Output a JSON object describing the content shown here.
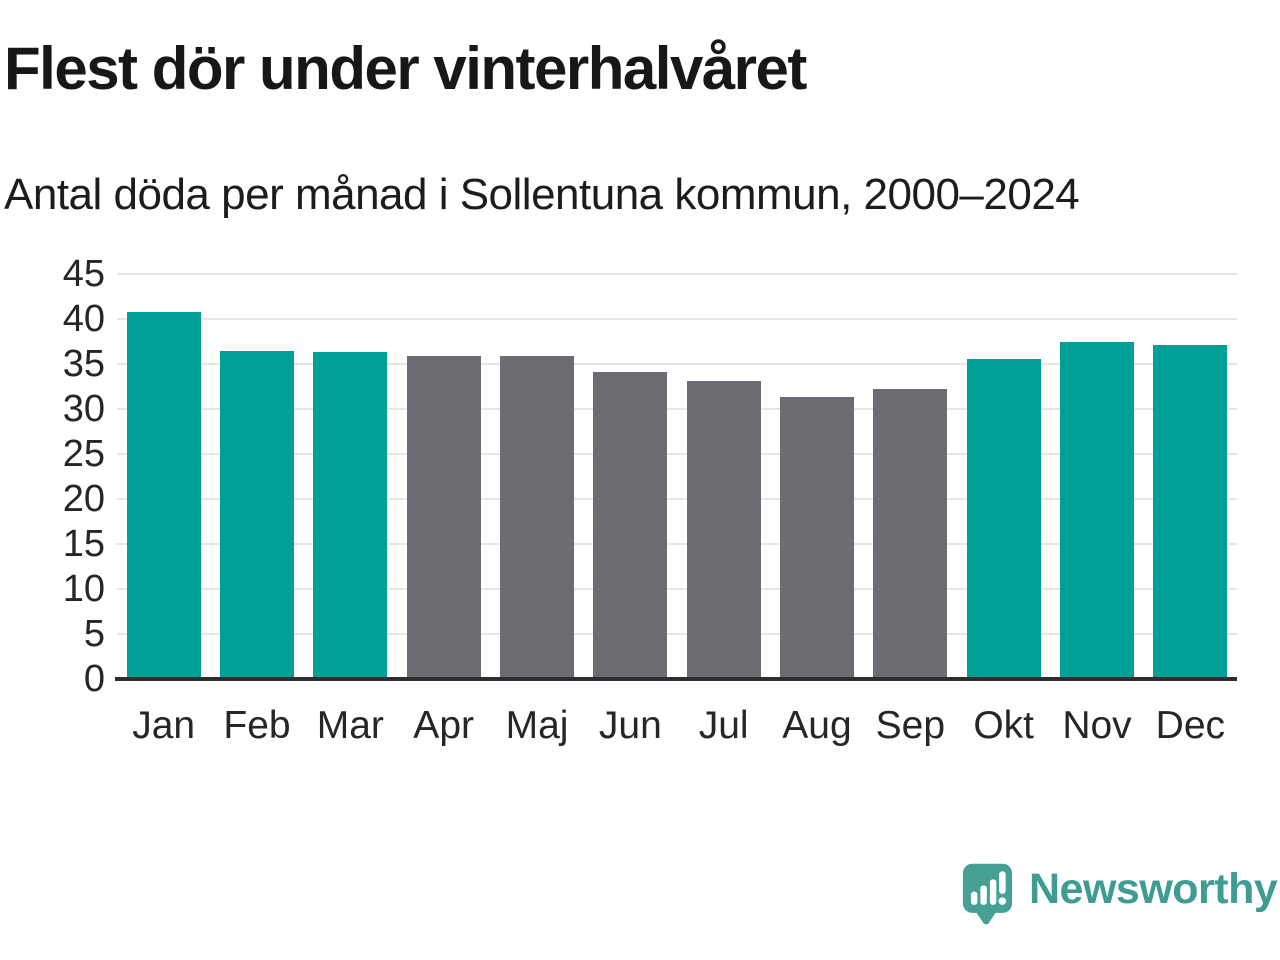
{
  "header": {
    "title": "Flest dör under vinterhalvåret",
    "subtitle": "Antal döda per månad i Sollentuna kommun, 2000–2024"
  },
  "chart_data": {
    "type": "bar",
    "categories": [
      "Jan",
      "Feb",
      "Mar",
      "Apr",
      "Maj",
      "Jun",
      "Jul",
      "Aug",
      "Sep",
      "Okt",
      "Nov",
      "Dec"
    ],
    "values": [
      40.8,
      36.4,
      36.3,
      35.9,
      35.9,
      34.1,
      33.1,
      31.3,
      32.2,
      35.6,
      37.5,
      37.1
    ],
    "bar_colors": [
      "#00a096",
      "#00a096",
      "#00a096",
      "#6e6b73",
      "#6e6b73",
      "#6e6b73",
      "#6e6b73",
      "#6e6b73",
      "#6e6b73",
      "#00a096",
      "#00a096",
      "#00a096"
    ],
    "title": "Flest dör under vinterhalvåret",
    "subtitle": "Antal döda per månad i Sollentuna kommun, 2000–2024",
    "xlabel": "",
    "ylabel": "",
    "ylim": [
      0,
      45
    ],
    "yticks": [
      0,
      5,
      10,
      15,
      20,
      25,
      30,
      35,
      40,
      45
    ],
    "grid": "horizontal-only",
    "legend": "none",
    "colors": {
      "winter_bar": "#00a096",
      "summer_bar": "#6e6b73",
      "gridline": "#e5e5e5",
      "axis_line": "#2d2d2d",
      "tick_text": "#262626"
    }
  },
  "footer": {
    "brand": "Newsworthy",
    "brand_color": "#3e9c92",
    "logo_icon": "newsworthy-speech-bubble-bar-chart-icon",
    "logo_icon_color": "#47a094"
  }
}
